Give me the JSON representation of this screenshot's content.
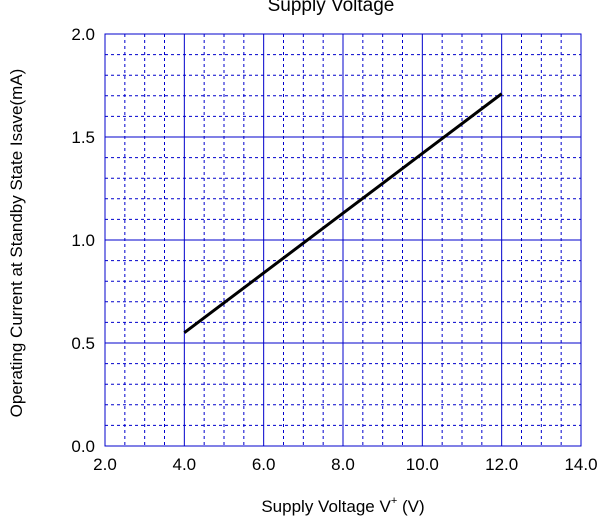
{
  "chart_data": {
    "type": "line",
    "title": "Supply Voltage",
    "xlabel": {
      "main": "Supply Voltage  V",
      "superscript": "+",
      "unit": " (V)"
    },
    "ylabel": "Operating Current at Standby State  Isave(mA)",
    "xlim": [
      2.0,
      14.0
    ],
    "ylim": [
      0.0,
      2.0
    ],
    "x_ticks": [
      "2.0",
      "4.0",
      "6.0",
      "8.0",
      "10.0",
      "12.0",
      "14.0"
    ],
    "y_ticks": [
      "0.0",
      "0.5",
      "1.0",
      "1.5",
      "2.0"
    ],
    "x_tick_values": [
      2,
      4,
      6,
      8,
      10,
      12,
      14
    ],
    "y_tick_values": [
      0,
      0.5,
      1.0,
      1.5,
      2.0
    ],
    "grid": {
      "major": true,
      "minor": true,
      "color": "#0000cc"
    },
    "series": [
      {
        "color": "#000000",
        "x": [
          4.0,
          6.0,
          8.0,
          10.0,
          12.0
        ],
        "y": [
          0.55,
          0.84,
          1.13,
          1.42,
          1.71
        ]
      }
    ]
  }
}
